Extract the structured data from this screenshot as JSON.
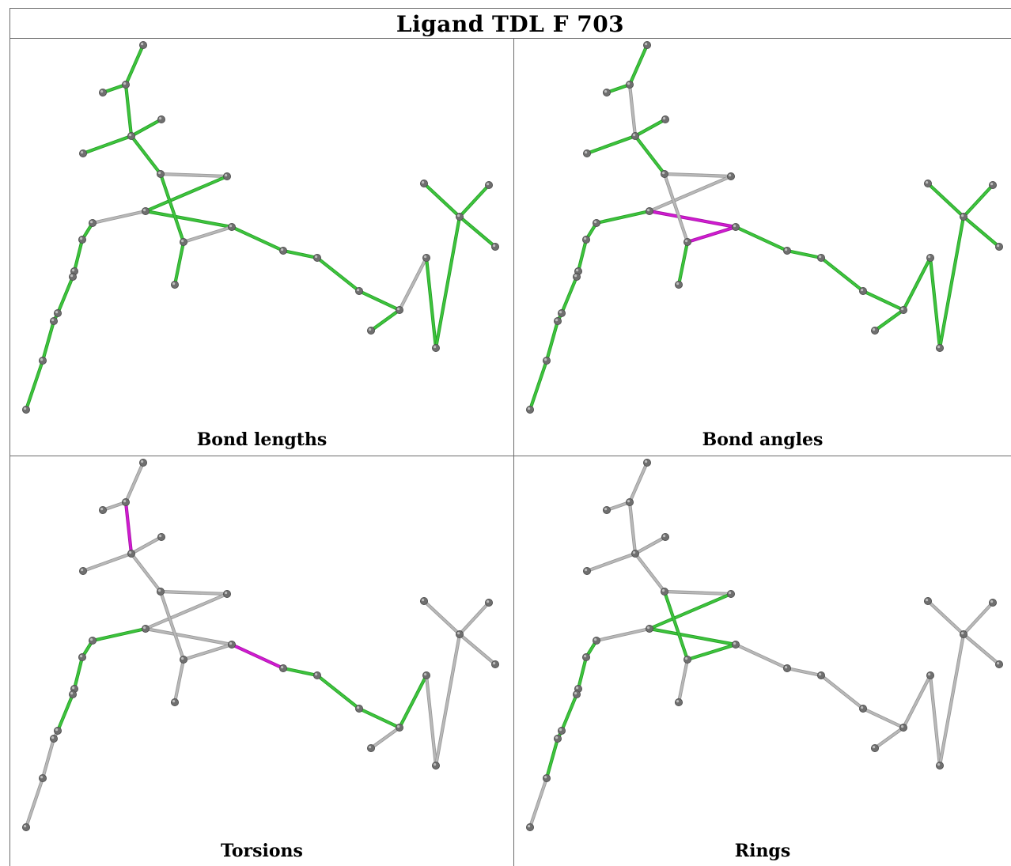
{
  "title": "Ligand TDL F 703",
  "colors": {
    "ok": "#3ec43e",
    "outlier": "#d21bd2",
    "neutral": "#b9b9b9",
    "atom": "#6f6f6f"
  },
  "molecule": {
    "atoms": [
      "a0",
      "a1",
      "a2",
      "a3",
      "a4",
      "a5",
      "a6",
      "a7",
      "a8",
      "a9",
      "a10",
      "a11",
      "a12",
      "a13",
      "a14",
      "a15",
      "a16",
      "a17",
      "a18",
      "a19",
      "a20",
      "a21",
      "a22",
      "a23",
      "a24",
      "a25",
      "a26",
      "a27",
      "a28",
      "a29",
      "a30"
    ],
    "bonds": [
      [
        "a0",
        "a1"
      ],
      [
        "a1",
        "a2"
      ],
      [
        "a1",
        "a3"
      ],
      [
        "a3",
        "a4"
      ],
      [
        "a3",
        "a5"
      ],
      [
        "a3",
        "a6"
      ],
      [
        "a6",
        "a7"
      ],
      [
        "a7",
        "a8"
      ],
      [
        "a8",
        "a9"
      ],
      [
        "a9",
        "a10"
      ],
      [
        "a10",
        "a6"
      ],
      [
        "a10",
        "a11"
      ],
      [
        "a9",
        "a12"
      ],
      [
        "a12",
        "a13"
      ],
      [
        "a13",
        "a14"
      ],
      [
        "a14",
        "a15"
      ],
      [
        "a15",
        "a16"
      ],
      [
        "a15",
        "a17"
      ],
      [
        "a16",
        "a18"
      ],
      [
        "a18",
        "a19"
      ],
      [
        "a19",
        "a20"
      ],
      [
        "a19",
        "a21"
      ],
      [
        "a19",
        "a22"
      ],
      [
        "a8",
        "a23"
      ],
      [
        "a23",
        "a24"
      ],
      [
        "a24",
        "a25"
      ],
      [
        "a25",
        "a26"
      ],
      [
        "a26",
        "a27"
      ],
      [
        "a27",
        "a28"
      ],
      [
        "a28",
        "a29"
      ],
      [
        "a29",
        "a30"
      ]
    ]
  },
  "panels": [
    {
      "label": "Bond lengths",
      "bond_status": [
        "ok",
        "ok",
        "ok",
        "ok",
        "ok",
        "ok",
        "neutral",
        "ok",
        "ok",
        "neutral",
        "ok",
        "ok",
        "ok",
        "ok",
        "ok",
        "ok",
        "neutral",
        "ok",
        "ok",
        "ok",
        "ok",
        "ok",
        "ok",
        "neutral",
        "ok",
        "ok",
        "ok",
        "ok",
        "ok",
        "ok",
        "ok"
      ]
    },
    {
      "label": "Bond angles",
      "bond_status": [
        "ok",
        "ok",
        "neutral",
        "ok",
        "ok",
        "ok",
        "neutral",
        "neutral",
        "outlier",
        "outlier",
        "neutral",
        "ok",
        "ok",
        "ok",
        "ok",
        "ok",
        "ok",
        "ok",
        "ok",
        "ok",
        "ok",
        "ok",
        "ok",
        "ok",
        "ok",
        "ok",
        "ok",
        "ok",
        "ok",
        "ok",
        "ok"
      ]
    },
    {
      "label": "Torsions",
      "bond_status": [
        "neutral",
        "neutral",
        "outlier",
        "neutral",
        "neutral",
        "neutral",
        "neutral",
        "neutral",
        "neutral",
        "neutral",
        "neutral",
        "neutral",
        "outlier",
        "ok",
        "ok",
        "ok",
        "ok",
        "neutral",
        "neutral",
        "neutral",
        "neutral",
        "neutral",
        "neutral",
        "ok",
        "ok",
        "ok",
        "ok",
        "ok",
        "neutral",
        "neutral",
        "neutral"
      ]
    },
    {
      "label": "Rings",
      "bond_status": [
        "neutral",
        "neutral",
        "neutral",
        "neutral",
        "neutral",
        "neutral",
        "neutral",
        "ok",
        "ok",
        "ok",
        "ok",
        "neutral",
        "neutral",
        "neutral",
        "neutral",
        "neutral",
        "neutral",
        "neutral",
        "neutral",
        "neutral",
        "neutral",
        "neutral",
        "neutral",
        "neutral",
        "ok",
        "ok",
        "ok",
        "ok",
        "ok",
        "ok",
        "neutral"
      ]
    }
  ]
}
